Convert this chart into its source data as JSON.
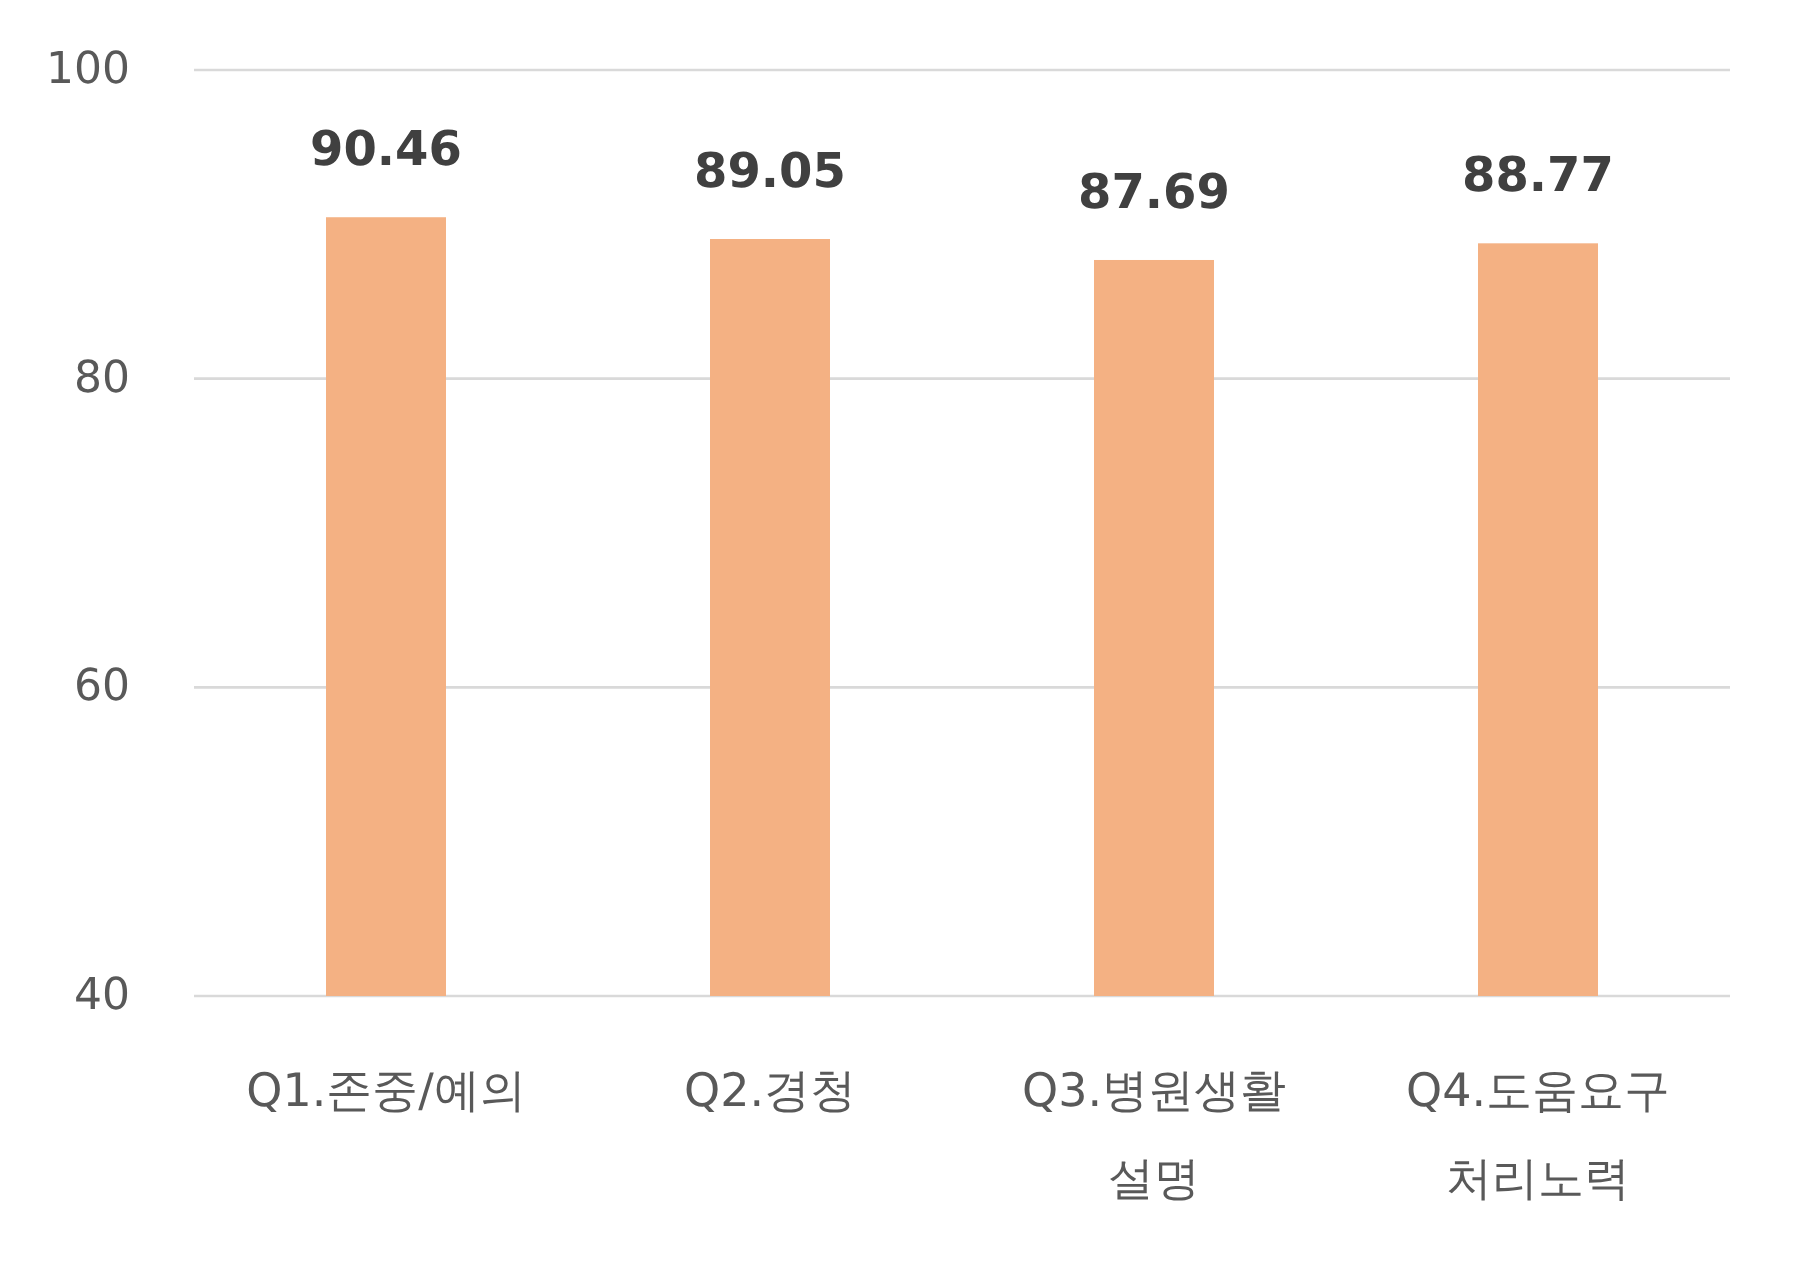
{
  "chart_data": {
    "type": "bar",
    "categories": [
      "Q1.존중/예의",
      "Q2.경청",
      "Q3.병원생활 설명",
      "Q4.도움요구 처리노력"
    ],
    "values": [
      90.46,
      89.05,
      87.69,
      88.77
    ],
    "color": "#f4b183",
    "ylim": [
      40,
      100
    ],
    "yticks": [
      40,
      60,
      80,
      100
    ],
    "grid": "y",
    "data_labels": true
  }
}
